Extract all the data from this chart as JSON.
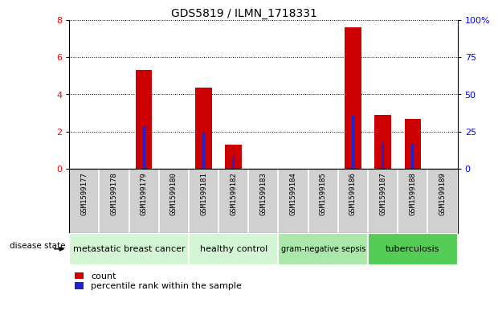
{
  "title": "GDS5819 / ILMN_1718331",
  "samples": [
    "GSM1599177",
    "GSM1599178",
    "GSM1599179",
    "GSM1599180",
    "GSM1599181",
    "GSM1599182",
    "GSM1599183",
    "GSM1599184",
    "GSM1599185",
    "GSM1599186",
    "GSM1599187",
    "GSM1599188",
    "GSM1599189"
  ],
  "counts": [
    0,
    0,
    5.3,
    0,
    4.35,
    1.3,
    0,
    0,
    0,
    7.6,
    2.9,
    2.7,
    0
  ],
  "percentile_ranks_scaled": [
    0,
    0,
    2.3,
    0,
    1.95,
    0.65,
    0,
    0,
    0,
    2.9,
    1.4,
    1.35,
    0
  ],
  "disease_groups": [
    {
      "label": "metastatic breast cancer",
      "start": 0,
      "end": 4,
      "color": "#d4f5d4"
    },
    {
      "label": "healthy control",
      "start": 4,
      "end": 7,
      "color": "#d4f5d4"
    },
    {
      "label": "gram-negative sepsis",
      "start": 7,
      "end": 10,
      "color": "#aae8aa"
    },
    {
      "label": "tuberculosis",
      "start": 10,
      "end": 13,
      "color": "#55cc55"
    }
  ],
  "ylim_left": [
    0,
    8
  ],
  "ylim_right": [
    0,
    100
  ],
  "yticks_left": [
    0,
    2,
    4,
    6,
    8
  ],
  "yticks_right": [
    0,
    25,
    50,
    75,
    100
  ],
  "ytick_right_labels": [
    "0",
    "25",
    "50",
    "75",
    "100%"
  ],
  "bar_color": "#cc0000",
  "percentile_color": "#2222cc",
  "tick_area_color": "#d0d0d0",
  "legend_count_label": "count",
  "legend_percentile_label": "percentile rank within the sample",
  "disease_state_label": "disease state"
}
